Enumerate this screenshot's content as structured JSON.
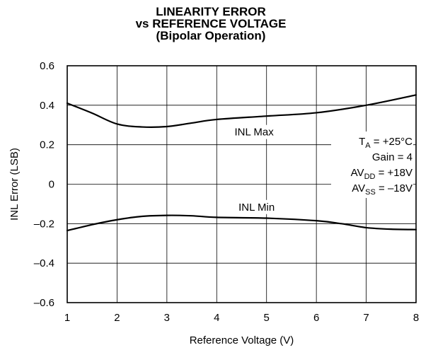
{
  "chart_data": {
    "type": "line",
    "title": [
      "LINEARITY ERROR",
      "vs REFERENCE VOLTAGE",
      "(Bipolar Operation)"
    ],
    "xlabel": "Reference Voltage (V)",
    "ylabel": "INL Error (LSB)",
    "xlim": [
      1,
      8
    ],
    "ylim": [
      -0.6,
      0.6
    ],
    "x_ticks": [
      1,
      2,
      3,
      4,
      5,
      6,
      7,
      8
    ],
    "x_tick_labels": [
      "1",
      "2",
      "3",
      "4",
      "5",
      "6",
      "7",
      "8"
    ],
    "y_ticks": [
      0.6,
      0.4,
      0.2,
      0,
      -0.2,
      -0.4,
      -0.6
    ],
    "y_tick_labels": [
      "0.6",
      "0.4",
      "0.2",
      "0",
      "–0.2",
      "–0.4",
      "–0.6"
    ],
    "grid": true,
    "series": [
      {
        "name": "INL Max",
        "points": [
          [
            1,
            0.41
          ],
          [
            1.5,
            0.36
          ],
          [
            2,
            0.305
          ],
          [
            2.5,
            0.29
          ],
          [
            3,
            0.292
          ],
          [
            3.5,
            0.31
          ],
          [
            4,
            0.328
          ],
          [
            5,
            0.345
          ],
          [
            6,
            0.362
          ],
          [
            7,
            0.4
          ],
          [
            8,
            0.452
          ]
        ]
      },
      {
        "name": "INL Min",
        "points": [
          [
            1,
            -0.235
          ],
          [
            1.5,
            -0.205
          ],
          [
            2,
            -0.18
          ],
          [
            2.5,
            -0.163
          ],
          [
            3,
            -0.158
          ],
          [
            3.5,
            -0.16
          ],
          [
            4,
            -0.168
          ],
          [
            5,
            -0.172
          ],
          [
            6,
            -0.185
          ],
          [
            6.5,
            -0.2
          ],
          [
            7,
            -0.22
          ],
          [
            7.5,
            -0.228
          ],
          [
            8,
            -0.23
          ]
        ]
      }
    ],
    "annotations": [
      {
        "text": "INL Max",
        "x": 4.75,
        "y": 0.25
      },
      {
        "text": "INL Min",
        "x": 4.8,
        "y": -0.13
      }
    ],
    "conditions": [
      {
        "main": "T",
        "sub": "A",
        "rest": " = +25°C"
      },
      {
        "main": "Gain = 4",
        "sub": "",
        "rest": ""
      },
      {
        "main": "AV",
        "sub": "DD",
        "rest": " = +18V"
      },
      {
        "main": "AV",
        "sub": "SS",
        "rest": " = –18V"
      }
    ]
  }
}
